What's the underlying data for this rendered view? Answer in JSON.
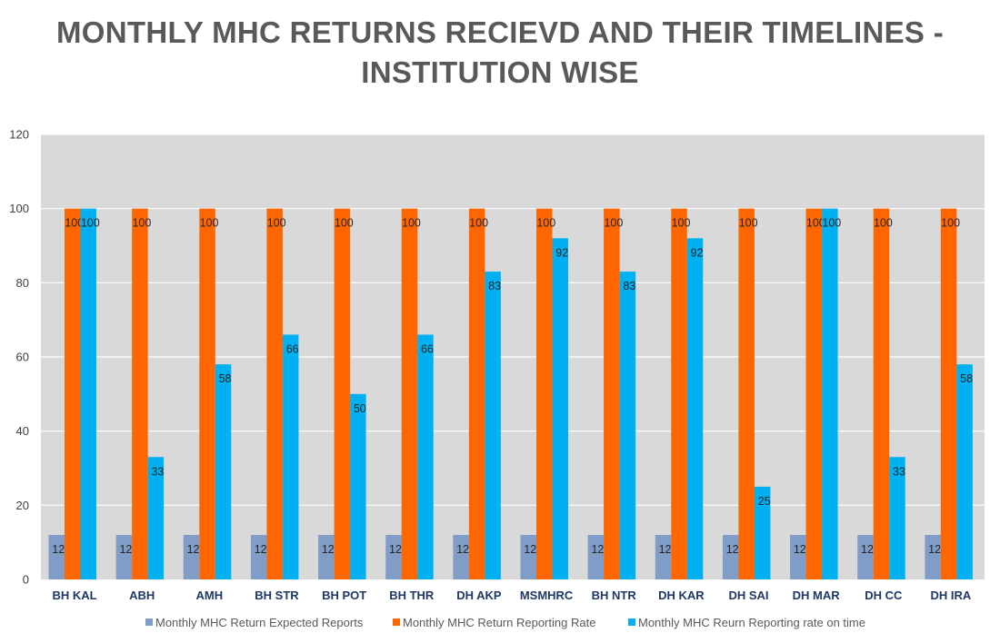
{
  "chart_data": {
    "type": "bar",
    "title": "MONTHLY MHC RETURNS RECIEVD AND THEIR TIMELINES - INSTITUTION WISE",
    "title_lines": [
      "MONTHLY MHC RETURNS RECIEVD AND THEIR TIMELINES -",
      "INSTITUTION WISE"
    ],
    "categories": [
      "BH KAL",
      "ABH",
      "AMH",
      "BH STR",
      "BH POT",
      "BH THR",
      "DH AKP",
      "MSMHRC",
      "BH NTR",
      "DH KAR",
      "DH SAI",
      "DH MAR",
      "DH CC",
      "DH IRA"
    ],
    "series": [
      {
        "name": "Monthly MHC Return Expected Reports",
        "color": "#7f9dc7",
        "values": [
          12,
          12,
          12,
          12,
          12,
          12,
          12,
          12,
          12,
          12,
          12,
          12,
          12,
          12
        ]
      },
      {
        "name": "Monthly MHC Return Reporting Rate",
        "color": "#ff6600",
        "values": [
          100,
          100,
          100,
          100,
          100,
          100,
          100,
          100,
          100,
          100,
          100,
          100,
          100,
          100
        ]
      },
      {
        "name": "Monthly MHC Reurn Reporting rate on time",
        "color": "#00b0f0",
        "values": [
          100,
          33,
          58,
          66,
          50,
          66,
          83,
          92,
          83,
          92,
          25,
          100,
          33,
          58
        ]
      }
    ],
    "ylim": [
      0,
      120
    ],
    "yticks": [
      0,
      20,
      40,
      60,
      80,
      100,
      120
    ],
    "xlabel": "",
    "ylabel": "",
    "grid": true,
    "plot_background": "#d9d9d9",
    "gridline_color": "#ffffff",
    "legend": "bottom"
  }
}
